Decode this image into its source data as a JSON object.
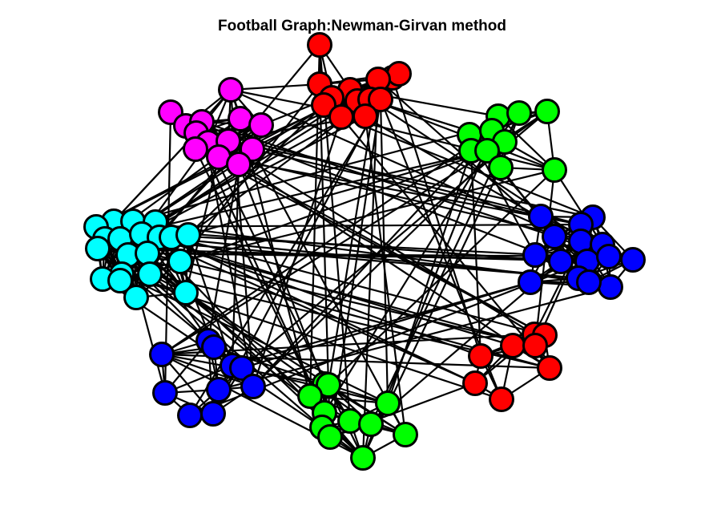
{
  "title": "Football Graph:Newman-Girvan method",
  "style": {
    "background": "#ffffff",
    "edge_color": "#000000",
    "node_outline": "#000000"
  },
  "communities": [
    {
      "id": "red-top",
      "color": "#ff0000"
    },
    {
      "id": "magenta",
      "color": "#ff00ff"
    },
    {
      "id": "green-top",
      "color": "#00ff00"
    },
    {
      "id": "cyan",
      "color": "#00ffff"
    },
    {
      "id": "blue-right",
      "color": "#0000ff"
    },
    {
      "id": "red-bottom",
      "color": "#ff0000"
    },
    {
      "id": "blue-bottom",
      "color": "#0000ff"
    },
    {
      "id": "green-bottom",
      "color": "#00ff00"
    }
  ]
}
